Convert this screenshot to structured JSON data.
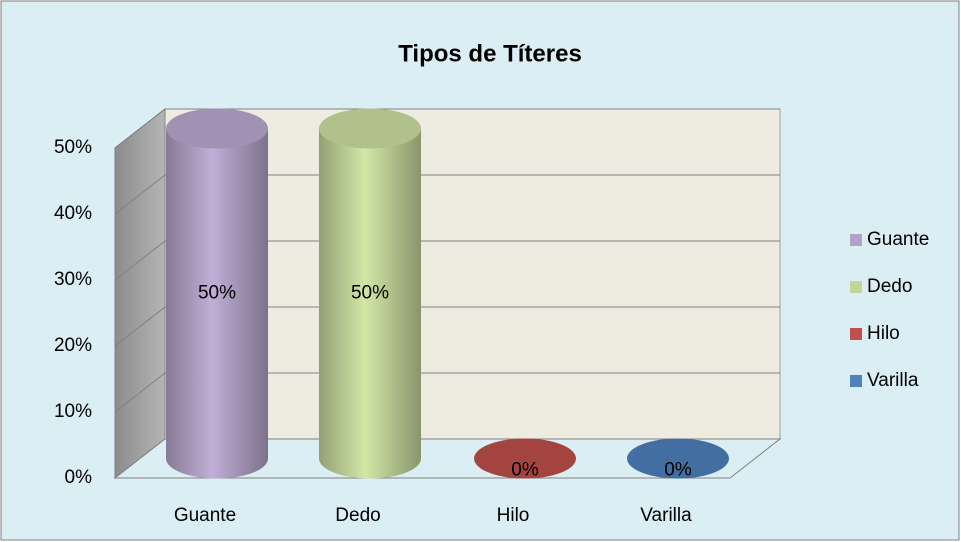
{
  "chart_data": {
    "type": "bar3d",
    "title": "Tipos de Títeres",
    "categories": [
      "Guante",
      "Dedo",
      "Hilo",
      "Varilla"
    ],
    "values": [
      50,
      50,
      0,
      0
    ],
    "value_labels": [
      "50%",
      "50%",
      "0%",
      "0%"
    ],
    "colors": [
      "#b3a2c7",
      "#c3d69b",
      "#c0504d",
      "#4f81bd"
    ],
    "ylim": [
      0,
      50
    ],
    "yticks": [
      {
        "value": 0,
        "label": "0%"
      },
      {
        "value": 10,
        "label": "10%"
      },
      {
        "value": 20,
        "label": "20%"
      },
      {
        "value": 30,
        "label": "30%"
      },
      {
        "value": 40,
        "label": "40%"
      },
      {
        "value": 50,
        "label": "50%"
      }
    ],
    "grid": true,
    "legend": "right"
  }
}
